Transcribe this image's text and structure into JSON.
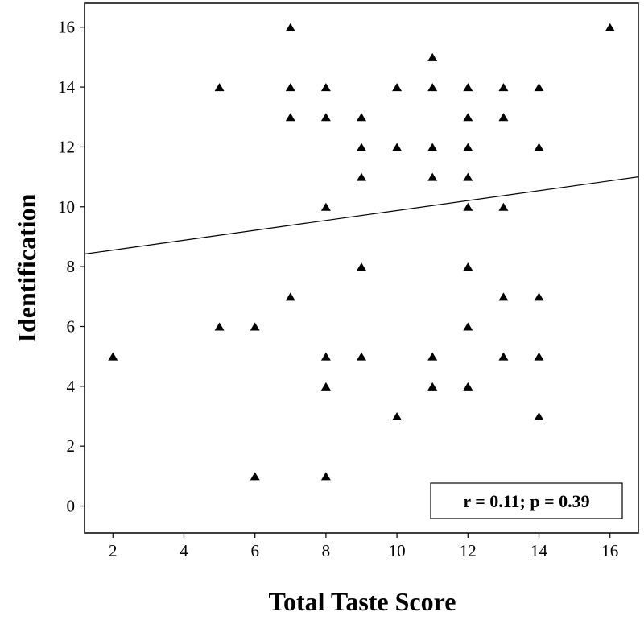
{
  "chart_data": {
    "type": "scatter",
    "xlabel": "Total Taste Score",
    "ylabel": "Identification",
    "xlim": [
      1.2,
      16.8
    ],
    "ylim": [
      -0.9,
      16.8
    ],
    "xticks": [
      2,
      4,
      6,
      8,
      10,
      12,
      14,
      16
    ],
    "yticks": [
      0,
      2,
      4,
      6,
      8,
      10,
      12,
      14,
      16
    ],
    "xtick_labels": [
      "2",
      "4",
      "6",
      "8",
      "10",
      "12",
      "14",
      "16"
    ],
    "ytick_labels": [
      "0",
      "2",
      "4",
      "6",
      "8",
      "10",
      "12",
      "14",
      "16"
    ],
    "grid": false,
    "marker": "triangle",
    "marker_color": "#000000",
    "points": [
      [
        2,
        5
      ],
      [
        5,
        14
      ],
      [
        5,
        6
      ],
      [
        6,
        6
      ],
      [
        6,
        1
      ],
      [
        7,
        16
      ],
      [
        7,
        14
      ],
      [
        7,
        13
      ],
      [
        7,
        7
      ],
      [
        8,
        14
      ],
      [
        8,
        13
      ],
      [
        8,
        10
      ],
      [
        8,
        5
      ],
      [
        8,
        4
      ],
      [
        8,
        1
      ],
      [
        9,
        13
      ],
      [
        9,
        12
      ],
      [
        9,
        11
      ],
      [
        9,
        8
      ],
      [
        9,
        5
      ],
      [
        10,
        14
      ],
      [
        10,
        12
      ],
      [
        10,
        3
      ],
      [
        11,
        15
      ],
      [
        11,
        14
      ],
      [
        11,
        12
      ],
      [
        11,
        11
      ],
      [
        11,
        5
      ],
      [
        11,
        4
      ],
      [
        12,
        14
      ],
      [
        12,
        13
      ],
      [
        12,
        12
      ],
      [
        12,
        11
      ],
      [
        12,
        10
      ],
      [
        12,
        8
      ],
      [
        12,
        6
      ],
      [
        12,
        4
      ],
      [
        13,
        14
      ],
      [
        13,
        13
      ],
      [
        13,
        10
      ],
      [
        13,
        7
      ],
      [
        13,
        5
      ],
      [
        14,
        14
      ],
      [
        14,
        12
      ],
      [
        14,
        7
      ],
      [
        14,
        5
      ],
      [
        14,
        3
      ],
      [
        16,
        16
      ]
    ],
    "fit_line": {
      "x": [
        1.2,
        16.8
      ],
      "y": [
        8.42,
        11.0
      ]
    },
    "annotation": "r = 0.11; p = 0.39"
  }
}
